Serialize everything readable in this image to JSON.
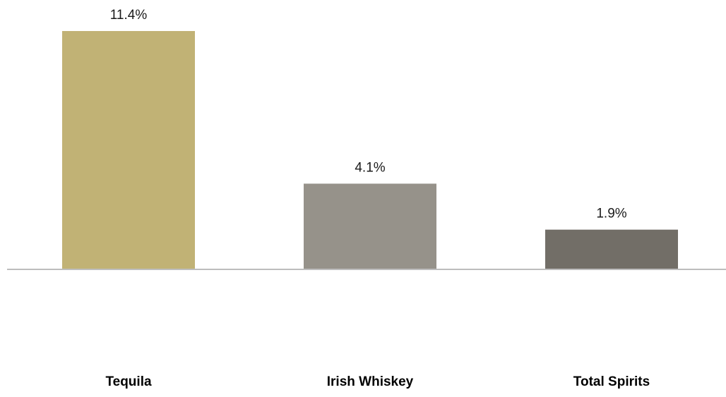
{
  "chart_data": {
    "type": "bar",
    "categories": [
      "Tequila",
      "Irish Whiskey",
      "Total Spirits"
    ],
    "values": [
      11.4,
      4.1,
      1.9
    ],
    "value_labels": [
      "11.4%",
      "4.1%",
      "1.9%"
    ],
    "colors": [
      "#c1b275",
      "#96928a",
      "#726e67"
    ],
    "axis_color": "#bdbdbd",
    "ylim": [
      0,
      11.4
    ],
    "grid": false,
    "legend": "none"
  }
}
